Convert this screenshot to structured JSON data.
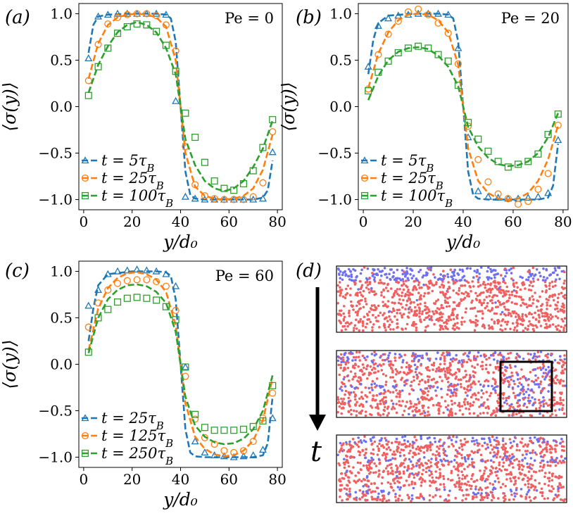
{
  "colors": {
    "blue": "#1f77b4",
    "orange": "#ff7f0e",
    "green": "#2ca02c",
    "particle_blue": "#6f6ff0",
    "particle_red": "#f06060"
  },
  "chart_data": [
    {
      "type": "line",
      "panel_label": "(a)",
      "annotation": "Pe = 0",
      "xlabel": "y/d₀",
      "ylabel": "⟨σ(y)⟩",
      "xlim": [
        -2,
        82
      ],
      "ylim": [
        -1.11,
        1.11
      ],
      "xticks": [
        0,
        20,
        40,
        60,
        80
      ],
      "yticks": [
        -1.0,
        -0.5,
        0.0,
        0.5,
        1.0
      ],
      "xtick_labels": [
        "0",
        "20",
        "40",
        "60",
        "80"
      ],
      "ytick_labels": [
        "−1.0",
        "−0.5",
        "0.0",
        "0.5",
        "1.0"
      ],
      "legend_location": "lower-left",
      "series": [
        {
          "name": "t = 5τ_B",
          "color_key": "blue",
          "marker": "triangle",
          "x": [
            2,
            6,
            10,
            14,
            18,
            22,
            26,
            30,
            34,
            38,
            42,
            46,
            50,
            54,
            58,
            62,
            66,
            70,
            74,
            78
          ],
          "y": [
            0.52,
            0.97,
            0.99,
            1.0,
            1.0,
            1.0,
            1.0,
            1.0,
            0.99,
            0.06,
            -0.97,
            -0.99,
            -1.0,
            -1.0,
            -1.0,
            -1.0,
            -1.0,
            -1.0,
            -0.99,
            -0.49
          ],
          "curve_x": [
            2,
            4,
            6,
            10,
            20,
            30,
            34,
            36,
            38,
            40,
            42,
            44,
            46,
            50,
            60,
            70,
            74,
            76,
            78
          ],
          "curve_y": [
            0.58,
            0.88,
            0.97,
            0.99,
            1.0,
            1.0,
            0.99,
            0.95,
            0.7,
            0.0,
            -0.7,
            -0.95,
            -0.99,
            -1.0,
            -1.0,
            -1.0,
            -0.98,
            -0.9,
            -0.58
          ]
        },
        {
          "name": "t = 25τ_B",
          "color_key": "orange",
          "marker": "circle",
          "x": [
            2,
            6,
            10,
            14,
            18,
            22,
            26,
            30,
            34,
            38,
            42,
            46,
            50,
            54,
            58,
            62,
            66,
            70,
            74,
            78
          ],
          "y": [
            0.28,
            0.67,
            0.89,
            0.96,
            0.99,
            1.0,
            1.0,
            0.98,
            0.88,
            0.6,
            -0.43,
            -0.84,
            -0.96,
            -0.99,
            -1.0,
            -1.0,
            -1.0,
            -0.97,
            -0.82,
            -0.27
          ],
          "curve_x": [
            2,
            6,
            10,
            14,
            18,
            22,
            26,
            30,
            34,
            38,
            40,
            42,
            46,
            50,
            54,
            58,
            62,
            66,
            70,
            74,
            78
          ],
          "curve_y": [
            0.3,
            0.68,
            0.88,
            0.96,
            0.99,
            1.0,
            0.99,
            0.96,
            0.86,
            0.5,
            0.0,
            -0.5,
            -0.86,
            -0.96,
            -0.99,
            -1.0,
            -0.99,
            -0.96,
            -0.88,
            -0.68,
            -0.3
          ]
        },
        {
          "name": "t = 100τ_B",
          "color_key": "green",
          "marker": "square",
          "x": [
            2,
            6,
            10,
            14,
            18,
            22,
            26,
            30,
            34,
            38,
            42,
            46,
            50,
            54,
            58,
            62,
            66,
            70,
            74,
            78
          ],
          "y": [
            0.12,
            0.43,
            0.63,
            0.79,
            0.86,
            0.89,
            0.88,
            0.81,
            0.66,
            0.38,
            -0.07,
            -0.33,
            -0.6,
            -0.8,
            -0.88,
            -0.9,
            -0.83,
            -0.69,
            -0.44,
            -0.14
          ],
          "curve_x": [
            2,
            6,
            10,
            14,
            18,
            22,
            26,
            30,
            34,
            38,
            40,
            42,
            46,
            50,
            54,
            58,
            62,
            66,
            70,
            74,
            78
          ],
          "curve_y": [
            0.15,
            0.45,
            0.65,
            0.8,
            0.88,
            0.91,
            0.88,
            0.8,
            0.63,
            0.35,
            0.0,
            -0.35,
            -0.63,
            -0.8,
            -0.88,
            -0.91,
            -0.88,
            -0.8,
            -0.65,
            -0.45,
            -0.15
          ]
        }
      ]
    },
    {
      "type": "line",
      "panel_label": "(b)",
      "annotation": "Pe = 20",
      "xlabel": "y/d₀",
      "ylabel": "⟨σ(y)⟩",
      "xlim": [
        -2,
        82
      ],
      "ylim": [
        -1.11,
        1.11
      ],
      "xticks": [
        0,
        20,
        40,
        60,
        80
      ],
      "yticks": [
        -1.0,
        -0.5,
        0.0,
        0.5,
        1.0
      ],
      "xtick_labels": [
        "0",
        "20",
        "40",
        "60",
        "80"
      ],
      "ytick_labels": [
        "−1.0",
        "−0.5",
        "0.0",
        "0.5",
        "1.0"
      ],
      "legend_location": "lower-left",
      "series": [
        {
          "name": "t = 5τ_B",
          "color_key": "blue",
          "marker": "triangle",
          "x": [
            2,
            6,
            10,
            14,
            18,
            22,
            26,
            30,
            34,
            38,
            42,
            46,
            50,
            54,
            58,
            62,
            66,
            70,
            74,
            78
          ],
          "y": [
            0.43,
            0.87,
            0.95,
            0.98,
            0.99,
            1.0,
            1.0,
            1.0,
            0.99,
            0.63,
            -0.33,
            -0.91,
            -0.97,
            -0.98,
            -0.99,
            -0.99,
            -0.98,
            -0.97,
            -0.93,
            -0.36
          ],
          "curve_x": [
            2,
            4,
            6,
            10,
            20,
            30,
            34,
            36,
            38,
            40,
            42,
            44,
            46,
            50,
            60,
            70,
            74,
            76,
            78
          ],
          "curve_y": [
            0.35,
            0.72,
            0.9,
            0.98,
            1.0,
            1.0,
            0.99,
            0.95,
            0.7,
            0.0,
            -0.7,
            -0.95,
            -0.99,
            -1.0,
            -1.0,
            -1.0,
            -0.98,
            -0.85,
            -0.4
          ]
        },
        {
          "name": "t = 25τ_B",
          "color_key": "orange",
          "marker": "circle",
          "x": [
            2,
            6,
            10,
            14,
            18,
            22,
            26,
            30,
            34,
            38,
            42,
            46,
            50,
            54,
            58,
            62,
            66,
            70,
            74,
            78
          ],
          "y": [
            0.19,
            0.56,
            0.78,
            0.92,
            1.02,
            1.05,
            0.99,
            0.9,
            0.79,
            0.46,
            -0.21,
            -0.57,
            -0.81,
            -0.94,
            -0.99,
            -1.05,
            -1.02,
            -0.89,
            -0.72,
            -0.2
          ],
          "curve_x": [
            2,
            6,
            10,
            14,
            18,
            22,
            26,
            30,
            34,
            38,
            40,
            42,
            46,
            50,
            54,
            58,
            62,
            66,
            70,
            74,
            78
          ],
          "curve_y": [
            0.2,
            0.57,
            0.8,
            0.93,
            0.99,
            1.0,
            0.99,
            0.93,
            0.8,
            0.45,
            0.0,
            -0.45,
            -0.8,
            -0.93,
            -0.99,
            -1.0,
            -0.99,
            -0.93,
            -0.8,
            -0.57,
            -0.2
          ]
        },
        {
          "name": "t = 100τ_B",
          "color_key": "green",
          "marker": "square",
          "x": [
            2,
            6,
            10,
            14,
            18,
            22,
            26,
            30,
            34,
            38,
            42,
            46,
            50,
            54,
            58,
            62,
            66,
            70,
            74,
            78
          ],
          "y": [
            0.17,
            0.37,
            0.49,
            0.58,
            0.63,
            0.65,
            0.63,
            0.56,
            0.49,
            0.23,
            -0.17,
            -0.35,
            -0.48,
            -0.59,
            -0.65,
            -0.62,
            -0.59,
            -0.51,
            -0.3,
            -0.08
          ],
          "curve_x": [
            2,
            6,
            10,
            14,
            18,
            22,
            26,
            30,
            34,
            38,
            40,
            42,
            46,
            50,
            54,
            58,
            62,
            66,
            70,
            74,
            78
          ],
          "curve_y": [
            0.07,
            0.33,
            0.5,
            0.59,
            0.63,
            0.64,
            0.62,
            0.55,
            0.43,
            0.22,
            0.0,
            -0.22,
            -0.43,
            -0.55,
            -0.62,
            -0.64,
            -0.63,
            -0.59,
            -0.5,
            -0.33,
            -0.07
          ]
        }
      ]
    },
    {
      "type": "line",
      "panel_label": "(c)",
      "annotation": "Pe = 60",
      "xlabel": "y/d₀",
      "ylabel": "⟨σ(y)⟩",
      "xlim": [
        -2,
        82
      ],
      "ylim": [
        -1.11,
        1.11
      ],
      "xticks": [
        0,
        20,
        40,
        60,
        80
      ],
      "yticks": [
        -1.0,
        -0.5,
        0.0,
        0.5,
        1.0
      ],
      "xtick_labels": [
        "0",
        "20",
        "40",
        "60",
        "80"
      ],
      "ytick_labels": [
        "−1.0",
        "−0.5",
        "0.0",
        "0.5",
        "1.0"
      ],
      "legend_location": "lower-left",
      "series": [
        {
          "name": "t = 25τ_B",
          "color_key": "blue",
          "marker": "triangle",
          "x": [
            2,
            6,
            10,
            14,
            18,
            22,
            26,
            30,
            34,
            38,
            42,
            46,
            50,
            54,
            58,
            62,
            66,
            70,
            74,
            78
          ],
          "y": [
            0.63,
            0.8,
            0.97,
            1.0,
            1.01,
            1.02,
            1.01,
            1.0,
            0.97,
            0.84,
            -0.03,
            -0.83,
            -0.95,
            -0.98,
            -0.99,
            -1.0,
            -0.99,
            -0.98,
            -0.92,
            -0.58
          ],
          "curve_x": [
            2,
            4,
            6,
            10,
            20,
            30,
            34,
            36,
            38,
            40,
            42,
            44,
            46,
            50,
            60,
            70,
            74,
            76,
            78
          ],
          "curve_y": [
            0.25,
            0.6,
            0.85,
            0.97,
            1.0,
            1.0,
            0.99,
            0.95,
            0.7,
            0.0,
            -0.7,
            -0.95,
            -0.99,
            -1.0,
            -1.0,
            -1.0,
            -0.98,
            -0.85,
            -0.35
          ]
        },
        {
          "name": "t = 125τ_B",
          "color_key": "orange",
          "marker": "circle",
          "x": [
            2,
            6,
            10,
            14,
            18,
            22,
            26,
            30,
            34,
            38,
            42,
            46,
            50,
            54,
            58,
            62,
            66,
            70,
            74,
            78
          ],
          "y": [
            0.4,
            0.66,
            0.8,
            0.87,
            0.9,
            0.91,
            0.91,
            0.89,
            0.84,
            0.58,
            -0.13,
            -0.59,
            -0.79,
            -0.86,
            -0.93,
            -0.95,
            -0.93,
            -0.83,
            -0.58,
            -0.31
          ],
          "curve_x": [
            2,
            6,
            10,
            14,
            18,
            22,
            26,
            30,
            34,
            38,
            40,
            42,
            46,
            50,
            54,
            58,
            62,
            66,
            70,
            74,
            78
          ],
          "curve_y": [
            0.15,
            0.6,
            0.82,
            0.93,
            0.98,
            0.99,
            0.97,
            0.91,
            0.78,
            0.42,
            0.0,
            -0.42,
            -0.78,
            -0.91,
            -0.97,
            -0.99,
            -0.98,
            -0.93,
            -0.82,
            -0.6,
            -0.15
          ]
        },
        {
          "name": "t = 250τ_B",
          "color_key": "green",
          "marker": "square",
          "x": [
            2,
            6,
            10,
            14,
            18,
            22,
            26,
            30,
            34,
            38,
            42,
            46,
            50,
            54,
            58,
            62,
            66,
            70,
            74,
            78
          ],
          "y": [
            0.13,
            0.5,
            0.59,
            0.67,
            0.71,
            0.72,
            0.71,
            0.69,
            0.62,
            0.48,
            -0.03,
            -0.54,
            -0.68,
            -0.71,
            -0.71,
            -0.71,
            -0.7,
            -0.67,
            -0.61,
            -0.23
          ],
          "curve_x": [
            2,
            6,
            10,
            14,
            18,
            22,
            26,
            30,
            34,
            38,
            40,
            42,
            46,
            50,
            54,
            58,
            62,
            66,
            70,
            74,
            78
          ],
          "curve_y": [
            0.12,
            0.5,
            0.7,
            0.8,
            0.85,
            0.86,
            0.84,
            0.78,
            0.66,
            0.35,
            0.0,
            -0.35,
            -0.66,
            -0.78,
            -0.84,
            -0.86,
            -0.85,
            -0.8,
            -0.7,
            -0.5,
            -0.12
          ]
        }
      ]
    }
  ],
  "snapshots": {
    "panel_label": "(d)",
    "time_label": "t",
    "count": 3,
    "zoom_box_on": "second snapshot"
  }
}
